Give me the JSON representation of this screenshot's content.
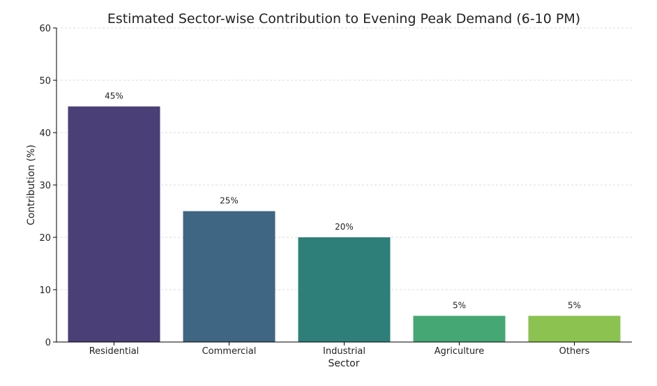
{
  "chart_data": {
    "type": "bar",
    "title": "Estimated Sector-wise Contribution to Evening Peak Demand (6-10 PM)",
    "xlabel": "Sector",
    "ylabel": "Contribution (%)",
    "categories": [
      "Residential",
      "Commercial",
      "Industrial",
      "Agriculture",
      "Others"
    ],
    "values": [
      45,
      25,
      20,
      5,
      5
    ],
    "data_labels": [
      "45%",
      "25%",
      "20%",
      "5%",
      "5%"
    ],
    "colors": [
      "#4a3f76",
      "#3f6682",
      "#2e7f7a",
      "#45a774",
      "#8bc250"
    ],
    "ylim": [
      0,
      60
    ],
    "yticks": [
      0,
      10,
      20,
      30,
      40,
      50,
      60
    ],
    "grid": "y-dashed",
    "legend": "none"
  }
}
